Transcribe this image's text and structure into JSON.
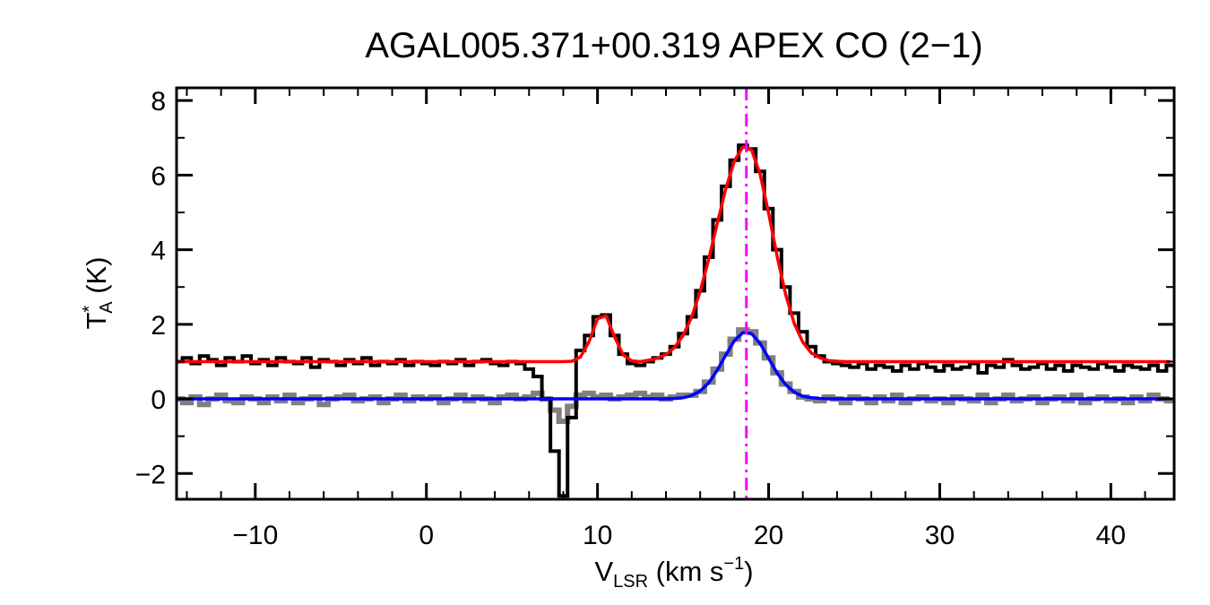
{
  "chart_data": {
    "type": "line",
    "title": "AGAL005.371+00.319  APEX CO (2−1)",
    "xlabel": {
      "main": "V",
      "sub": "LSR",
      "mid": " (km s",
      "sup": "−1",
      "end": ")"
    },
    "ylabel": {
      "main": "T",
      "sup": "*",
      "sub": "A",
      "end": " (K)"
    },
    "xlim": [
      -14.6,
      43.7
    ],
    "ylim": [
      -2.69,
      8.34
    ],
    "xticks": [
      {
        "value": -10,
        "label": "−10"
      },
      0,
      10,
      20,
      30,
      40
    ],
    "yticks": [
      {
        "value": -2,
        "label": "−2"
      },
      0,
      2,
      4,
      6,
      8
    ],
    "minor_subdivisions": {
      "x": 5,
      "y": 2
    },
    "x": [
      -14.5,
      -14,
      -13.5,
      -13,
      -12.5,
      -12,
      -11.5,
      -11,
      -10.5,
      -10,
      -9.5,
      -9,
      -8.5,
      -8,
      -7.5,
      -7,
      -6.5,
      -6,
      -5.5,
      -5,
      -4.5,
      -4,
      -3.5,
      -3,
      -2.5,
      -2,
      -1.5,
      -1,
      -0.5,
      0,
      0.5,
      1,
      1.5,
      2,
      2.5,
      3,
      3.5,
      4,
      4.5,
      5,
      5.5,
      6,
      6.5,
      7,
      7.5,
      8,
      8.5,
      9,
      9.5,
      10,
      10.5,
      11,
      11.5,
      12,
      12.5,
      13,
      13.5,
      14,
      14.5,
      15,
      15.5,
      16,
      16.5,
      17,
      17.5,
      18,
      18.5,
      19,
      19.5,
      20,
      20.5,
      21,
      21.5,
      22,
      22.5,
      23,
      23.5,
      24,
      24.5,
      25,
      25.5,
      26,
      26.5,
      27,
      27.5,
      28,
      28.5,
      29,
      29.5,
      30,
      30.5,
      31,
      31.5,
      32,
      32.5,
      33,
      33.5,
      34,
      34.5,
      35,
      35.5,
      36,
      36.5,
      37,
      37.5,
      38,
      38.5,
      39,
      39.5,
      40,
      40.5,
      41,
      41.5,
      42,
      42.5,
      43,
      43.5
    ],
    "series": [
      {
        "style": "steps",
        "color": "#808080",
        "values": [
          0.0,
          -0.1,
          0.05,
          -0.15,
          0.0,
          0.1,
          -0.05,
          -0.1,
          0.05,
          0.0,
          -0.1,
          0.05,
          -0.05,
          0.1,
          -0.1,
          0.0,
          0.05,
          -0.15,
          0.0,
          0.05,
          0.1,
          -0.05,
          0.0,
          0.05,
          -0.1,
          0.0,
          0.1,
          -0.05,
          0.05,
          0.0,
          0.05,
          -0.1,
          0.0,
          0.1,
          -0.05,
          0.05,
          0.0,
          -0.1,
          0.05,
          0.1,
          0.0,
          0.05,
          0.15,
          0.0,
          -0.3,
          -0.6,
          -0.2,
          0.1,
          0.15,
          0.05,
          0.1,
          0.0,
          0.05,
          0.1,
          0.15,
          0.05,
          0.1,
          0.0,
          0.05,
          0.1,
          0.1,
          0.2,
          0.45,
          0.8,
          1.2,
          1.6,
          1.85,
          1.8,
          1.5,
          1.1,
          0.7,
          0.4,
          0.2,
          0.05,
          0.0,
          -0.05,
          0.05,
          0.0,
          -0.1,
          0.05,
          0.0,
          -0.1,
          0.05,
          -0.05,
          0.1,
          -0.1,
          0.0,
          0.05,
          -0.05,
          0.0,
          -0.1,
          0.05,
          0.0,
          -0.05,
          0.1,
          -0.1,
          0.0,
          0.1,
          -0.05,
          0.0,
          0.05,
          -0.1,
          0.0,
          0.05,
          -0.05,
          0.1,
          -0.1,
          0.0,
          0.05,
          -0.05,
          0.0,
          -0.1,
          0.05,
          -0.05,
          0.1,
          0.0,
          -0.05
        ]
      },
      {
        "style": "steps",
        "color": "#000000",
        "values": [
          1.0,
          1.1,
          0.95,
          1.15,
          1.05,
          0.9,
          1.1,
          1.0,
          1.15,
          0.95,
          1.05,
          0.9,
          1.1,
          1.0,
          0.95,
          1.1,
          0.85,
          1.05,
          1.0,
          0.9,
          1.05,
          0.95,
          1.1,
          0.9,
          1.0,
          0.95,
          1.05,
          0.9,
          1.0,
          0.95,
          0.9,
          1.0,
          0.95,
          1.05,
          0.9,
          1.0,
          1.05,
          0.95,
          0.9,
          1.0,
          0.95,
          0.8,
          0.6,
          0.0,
          -1.4,
          -2.6,
          -0.5,
          1.3,
          1.7,
          2.2,
          2.25,
          1.7,
          1.2,
          0.95,
          0.9,
          1.0,
          1.1,
          1.2,
          1.4,
          1.75,
          2.2,
          2.9,
          3.8,
          4.8,
          5.7,
          6.4,
          6.8,
          6.7,
          6.1,
          5.1,
          4.0,
          3.0,
          2.3,
          1.8,
          1.4,
          1.15,
          1.0,
          0.95,
          0.9,
          0.85,
          0.95,
          0.8,
          0.9,
          0.85,
          0.75,
          0.9,
          0.8,
          0.95,
          0.85,
          0.75,
          0.9,
          0.8,
          0.85,
          0.95,
          0.7,
          0.9,
          0.85,
          1.05,
          0.9,
          0.8,
          0.85,
          0.95,
          0.8,
          0.9,
          0.75,
          0.9,
          0.85,
          0.8,
          0.95,
          0.85,
          0.75,
          0.9,
          0.85,
          0.8,
          0.9,
          0.75,
          0.9
        ]
      },
      {
        "style": "smooth",
        "color": "#ff0000",
        "values": [
          1.0,
          1.0,
          1.0,
          1.0,
          1.0,
          1.0,
          1.0,
          1.0,
          1.0,
          1.0,
          1.0,
          1.0,
          1.0,
          1.0,
          1.0,
          1.0,
          1.0,
          1.0,
          1.0,
          1.0,
          1.0,
          1.0,
          1.0,
          1.0,
          1.0,
          1.0,
          1.0,
          1.0,
          1.0,
          1.0,
          1.0,
          1.0,
          1.0,
          1.0,
          1.0,
          1.0,
          1.0,
          1.0,
          1.0,
          1.0,
          1.0,
          1.0,
          1.0,
          1.0,
          1.0,
          1.0,
          1.01,
          1.12,
          1.53,
          2.15,
          2.23,
          1.66,
          1.18,
          1.02,
          1.0,
          1.04,
          1.09,
          1.19,
          1.38,
          1.7,
          2.19,
          2.88,
          3.75,
          4.71,
          5.64,
          6.38,
          6.76,
          6.68,
          6.03,
          4.98,
          3.82,
          2.79,
          2.02,
          1.52,
          1.23,
          1.1,
          1.03,
          1.01,
          1.0,
          1.0,
          1.0,
          1.0,
          1.0,
          1.0,
          1.0,
          1.0,
          1.0,
          1.0,
          1.0,
          1.0,
          1.0,
          1.0,
          1.0,
          1.0,
          1.0,
          1.0,
          1.0,
          1.0,
          1.0,
          1.0,
          1.0,
          1.0,
          1.0,
          1.0,
          1.0,
          1.0,
          1.0,
          1.0,
          1.0,
          1.0,
          1.0,
          1.0,
          1.0,
          1.0,
          1.0,
          1.0,
          1.0
        ]
      },
      {
        "style": "smooth",
        "color": "#0000ff",
        "values": [
          0,
          0,
          0,
          0,
          0,
          0,
          0,
          0,
          0,
          0,
          0,
          0,
          0,
          0,
          0,
          0,
          0,
          0,
          0,
          0,
          0,
          0,
          0,
          0,
          0,
          0,
          0,
          0,
          0,
          0,
          0,
          0,
          0,
          0,
          0,
          0,
          0,
          0,
          0,
          0,
          0,
          0,
          0,
          0,
          0,
          0,
          0,
          0,
          0,
          0,
          0,
          0,
          0,
          0,
          0,
          0,
          0,
          0,
          0.01,
          0.03,
          0.09,
          0.21,
          0.43,
          0.77,
          1.18,
          1.56,
          1.78,
          1.75,
          1.49,
          1.09,
          0.69,
          0.38,
          0.18,
          0.07,
          0.03,
          0.01,
          0,
          0,
          0,
          0,
          0,
          0,
          0,
          0,
          0,
          0,
          0,
          0,
          0,
          0,
          0,
          0,
          0,
          0,
          0,
          0,
          0,
          0,
          0,
          0,
          0,
          0,
          0,
          0,
          0,
          0,
          0,
          0,
          0,
          0,
          0,
          0,
          0,
          0,
          0,
          0,
          0
        ]
      }
    ],
    "vlines": [
      {
        "x": 18.7,
        "color": "#ff00ff"
      }
    ]
  }
}
